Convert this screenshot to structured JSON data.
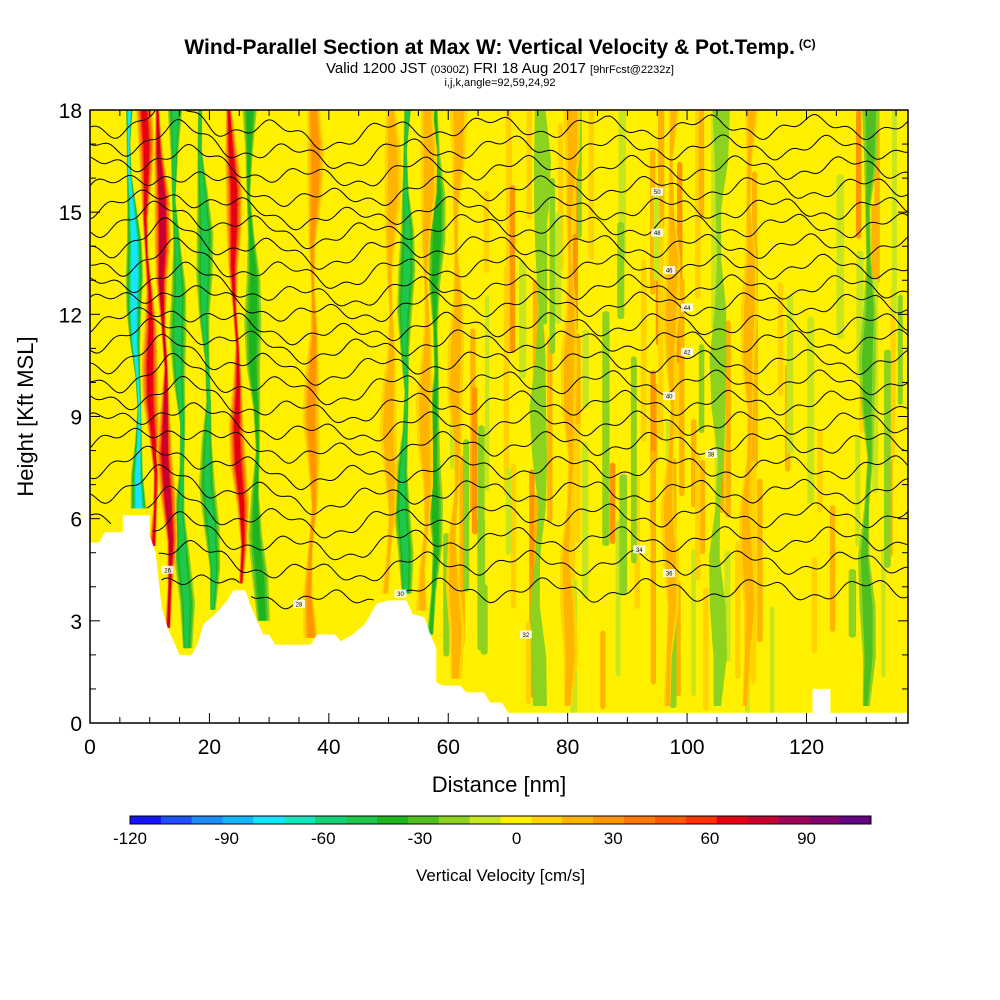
{
  "title": {
    "main": "Wind-Parallel Section at Max W: Vertical Velocity & Pot.Temp.",
    "main_suffix": "(C)",
    "valid_prefix": "Valid 1200 JST",
    "valid_utc": "(0300Z)",
    "valid_date": "FRI 18 Aug 2017",
    "forecast": "[9hrFcst@2232z]",
    "indices": "i,j,k,angle=92,59,24,92"
  },
  "chart_data": {
    "type": "heatmap",
    "xlabel": "Distance [nm]",
    "ylabel": "Height [Kft MSL]",
    "xlim": [
      0,
      137
    ],
    "ylim": [
      0,
      18
    ],
    "x_ticks": [
      0,
      20,
      40,
      60,
      80,
      100,
      120
    ],
    "y_ticks": [
      0,
      3,
      6,
      9,
      12,
      15,
      18
    ],
    "colorbar": {
      "label": "Vertical Velocity [cm/s]",
      "min": -120,
      "max": 110,
      "step": 10,
      "tick_values": [
        -120,
        -90,
        -60,
        -30,
        0,
        30,
        60,
        90
      ],
      "colors": [
        "#1414ff",
        "#1e50ff",
        "#1e8cff",
        "#14b4ff",
        "#14e6ff",
        "#14e6be",
        "#14d278",
        "#1ec84b",
        "#1eb41e",
        "#50be1e",
        "#8cd21e",
        "#c8e61e",
        "#fff000",
        "#ffd200",
        "#ffb400",
        "#ff9600",
        "#ff7800",
        "#ff5a00",
        "#ff3200",
        "#e60014",
        "#c80032",
        "#a0005a",
        "#82006e",
        "#640082"
      ]
    },
    "updrafts": [
      {
        "x": 11,
        "peak": 75
      },
      {
        "x": 13.5,
        "peak": 85
      },
      {
        "x": 25.5,
        "peak": 70
      },
      {
        "x": 37,
        "peak": 35
      },
      {
        "x": 50,
        "peak": 25
      },
      {
        "x": 56,
        "peak": 25
      },
      {
        "x": 61,
        "peak": 20
      },
      {
        "x": 80,
        "peak": 20
      },
      {
        "x": 97,
        "peak": 20
      },
      {
        "x": 110,
        "peak": 25
      }
    ],
    "downdrafts": [
      {
        "x": 8.5,
        "peak": -70
      },
      {
        "x": 16,
        "peak": -45
      },
      {
        "x": 20.5,
        "peak": -40
      },
      {
        "x": 28.5,
        "peak": -30
      },
      {
        "x": 52.5,
        "peak": -40
      },
      {
        "x": 57.5,
        "peak": -35
      },
      {
        "x": 75,
        "peak": -15
      },
      {
        "x": 105,
        "peak": -15
      },
      {
        "x": 130,
        "peak": -20
      }
    ],
    "terrain": [
      [
        0,
        5.3
      ],
      [
        1.5,
        5.3
      ],
      [
        2.5,
        5.6
      ],
      [
        5.5,
        5.6
      ],
      [
        5.5,
        6.1
      ],
      [
        10,
        6.1
      ],
      [
        10,
        5.5
      ],
      [
        11,
        5
      ],
      [
        12,
        3.4
      ],
      [
        13,
        2.8
      ],
      [
        14,
        2.4
      ],
      [
        15,
        2
      ],
      [
        17,
        2
      ],
      [
        18,
        2.3
      ],
      [
        19,
        2.9
      ],
      [
        21,
        3.2
      ],
      [
        23,
        3.6
      ],
      [
        24,
        3.9
      ],
      [
        26,
        3.9
      ],
      [
        27,
        3.4
      ],
      [
        28,
        3
      ],
      [
        29,
        2.6
      ],
      [
        30,
        2.6
      ],
      [
        31,
        2.3
      ],
      [
        37,
        2.3
      ],
      [
        38,
        2.6
      ],
      [
        41,
        2.6
      ],
      [
        42,
        2.4
      ],
      [
        44,
        2.6
      ],
      [
        46,
        2.9
      ],
      [
        48,
        3.5
      ],
      [
        50,
        3.6
      ],
      [
        53,
        3.6
      ],
      [
        54,
        3.2
      ],
      [
        56,
        3.1
      ],
      [
        57,
        2.6
      ],
      [
        58,
        2.2
      ],
      [
        58,
        1.2
      ],
      [
        59,
        1.1
      ],
      [
        62,
        1.1
      ],
      [
        63,
        0.9
      ],
      [
        66,
        0.9
      ],
      [
        67,
        0.6
      ],
      [
        69,
        0.6
      ],
      [
        70,
        0.3
      ],
      [
        121,
        0.3
      ],
      [
        121,
        1
      ],
      [
        124,
        1
      ],
      [
        124,
        0.3
      ],
      [
        137,
        0.3
      ]
    ],
    "isentropes_kft": [
      3.9,
      4.7,
      5.4,
      6.1,
      6.8,
      7.5,
      8.2,
      8.8,
      9.4,
      10,
      10.6,
      11.2,
      11.7,
      12.3,
      12.8,
      13.4,
      14,
      14.6,
      15.1,
      15.7,
      16.3,
      16.9,
      17.5
    ],
    "isentrope_labels": [
      "26",
      "28",
      "30",
      "32",
      "34",
      "36",
      "38",
      "40",
      "42",
      "44",
      "46",
      "48",
      "50"
    ]
  }
}
